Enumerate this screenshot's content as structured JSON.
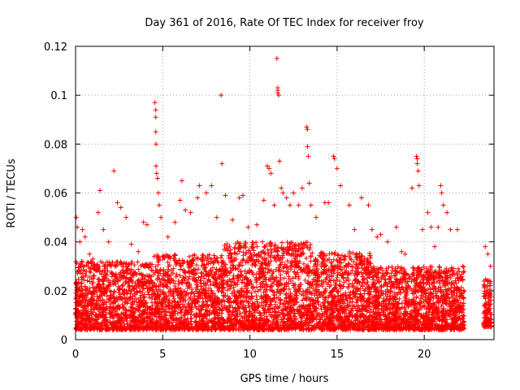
{
  "chart_data": {
    "type": "scatter",
    "title": "Day 361 of 2016, Rate Of TEC Index for receiver froy",
    "xlabel": "GPS time / hours",
    "ylabel": "ROTI / TECUs",
    "xlim": [
      0,
      24
    ],
    "ylim": [
      0,
      0.12
    ],
    "x_ticks": [
      0,
      5,
      10,
      15,
      20
    ],
    "x_tick_labels": [
      "0",
      "5",
      "10",
      "15",
      "20"
    ],
    "y_ticks": [
      0,
      0.02,
      0.04,
      0.06,
      0.08,
      0.1,
      0.12
    ],
    "y_tick_labels": [
      "0",
      "0.02",
      "0.04",
      "0.06",
      "0.08",
      "0.1",
      "0.12"
    ],
    "grid": true,
    "marker": "plus",
    "series": [
      {
        "name": "ROTI",
        "color": "#ff0000",
        "points": [
          [
            0.05,
            0.05
          ],
          [
            0.1,
            0.046
          ],
          [
            0.25,
            0.04
          ],
          [
            0.4,
            0.045
          ],
          [
            0.55,
            0.042
          ],
          [
            0.8,
            0.035
          ],
          [
            1.0,
            0.033
          ],
          [
            1.3,
            0.052
          ],
          [
            1.4,
            0.061
          ],
          [
            1.6,
            0.045
          ],
          [
            1.9,
            0.04
          ],
          [
            2.2,
            0.069
          ],
          [
            2.4,
            0.056
          ],
          [
            2.6,
            0.054
          ],
          [
            2.9,
            0.05
          ],
          [
            3.2,
            0.039
          ],
          [
            3.6,
            0.036
          ],
          [
            3.9,
            0.048
          ],
          [
            4.1,
            0.047
          ],
          [
            4.55,
            0.097
          ],
          [
            4.6,
            0.094
          ],
          [
            4.6,
            0.091
          ],
          [
            4.6,
            0.085
          ],
          [
            4.62,
            0.08
          ],
          [
            4.62,
            0.071
          ],
          [
            4.65,
            0.068
          ],
          [
            4.7,
            0.066
          ],
          [
            4.75,
            0.06
          ],
          [
            4.8,
            0.055
          ],
          [
            4.9,
            0.05
          ],
          [
            5.3,
            0.042
          ],
          [
            5.7,
            0.048
          ],
          [
            6.0,
            0.057
          ],
          [
            6.1,
            0.065
          ],
          [
            6.3,
            0.053
          ],
          [
            6.6,
            0.052
          ],
          [
            7.0,
            0.058
          ],
          [
            7.1,
            0.063
          ],
          [
            7.5,
            0.06
          ],
          [
            7.8,
            0.063
          ],
          [
            8.1,
            0.05
          ],
          [
            8.35,
            0.1
          ],
          [
            8.4,
            0.072
          ],
          [
            8.6,
            0.059
          ],
          [
            9.0,
            0.049
          ],
          [
            9.4,
            0.058
          ],
          [
            9.6,
            0.059
          ],
          [
            9.9,
            0.046
          ],
          [
            10.4,
            0.047
          ],
          [
            10.8,
            0.057
          ],
          [
            11.0,
            0.071
          ],
          [
            11.1,
            0.07
          ],
          [
            11.2,
            0.068
          ],
          [
            11.4,
            0.055
          ],
          [
            11.55,
            0.115
          ],
          [
            11.6,
            0.103
          ],
          [
            11.6,
            0.102
          ],
          [
            11.6,
            0.101
          ],
          [
            11.65,
            0.1
          ],
          [
            11.7,
            0.073
          ],
          [
            11.8,
            0.062
          ],
          [
            11.9,
            0.06
          ],
          [
            12.1,
            0.058
          ],
          [
            12.3,
            0.055
          ],
          [
            12.5,
            0.06
          ],
          [
            12.8,
            0.055
          ],
          [
            13.0,
            0.062
          ],
          [
            13.25,
            0.087
          ],
          [
            13.3,
            0.086
          ],
          [
            13.3,
            0.079
          ],
          [
            13.35,
            0.075
          ],
          [
            13.4,
            0.064
          ],
          [
            13.5,
            0.055
          ],
          [
            13.8,
            0.05
          ],
          [
            14.3,
            0.056
          ],
          [
            14.5,
            0.056
          ],
          [
            14.8,
            0.075
          ],
          [
            14.85,
            0.074
          ],
          [
            15.0,
            0.07
          ],
          [
            15.2,
            0.063
          ],
          [
            15.7,
            0.055
          ],
          [
            16.0,
            0.045
          ],
          [
            16.4,
            0.058
          ],
          [
            16.8,
            0.055
          ],
          [
            17.0,
            0.045
          ],
          [
            17.3,
            0.042
          ],
          [
            17.5,
            0.043
          ],
          [
            17.9,
            0.04
          ],
          [
            18.4,
            0.046
          ],
          [
            18.7,
            0.036
          ],
          [
            18.9,
            0.035
          ],
          [
            19.3,
            0.062
          ],
          [
            19.55,
            0.075
          ],
          [
            19.6,
            0.074
          ],
          [
            19.6,
            0.072
          ],
          [
            19.65,
            0.069
          ],
          [
            19.7,
            0.063
          ],
          [
            19.9,
            0.045
          ],
          [
            20.2,
            0.052
          ],
          [
            20.4,
            0.046
          ],
          [
            20.6,
            0.038
          ],
          [
            20.8,
            0.046
          ],
          [
            20.95,
            0.063
          ],
          [
            21.0,
            0.06
          ],
          [
            21.1,
            0.055
          ],
          [
            21.3,
            0.052
          ],
          [
            21.5,
            0.045
          ],
          [
            21.9,
            0.045
          ],
          [
            22.2,
            0.03
          ],
          [
            23.5,
            0.038
          ],
          [
            23.65,
            0.035
          ],
          [
            23.8,
            0.03
          ]
        ],
        "density_bands": [
          {
            "x_range": [
              0.0,
              4.5
            ],
            "y_band": [
              0.004,
              0.032
            ]
          },
          {
            "x_range": [
              4.5,
              8.5
            ],
            "y_band": [
              0.004,
              0.035
            ]
          },
          {
            "x_range": [
              8.5,
              13.5
            ],
            "y_band": [
              0.004,
              0.04
            ]
          },
          {
            "x_range": [
              13.5,
              17.0
            ],
            "y_band": [
              0.004,
              0.036
            ]
          },
          {
            "x_range": [
              17.0,
              22.3
            ],
            "y_band": [
              0.004,
              0.03
            ]
          },
          {
            "x_range": [
              23.4,
              23.85
            ],
            "y_band": [
              0.005,
              0.025
            ]
          }
        ]
      }
    ]
  }
}
